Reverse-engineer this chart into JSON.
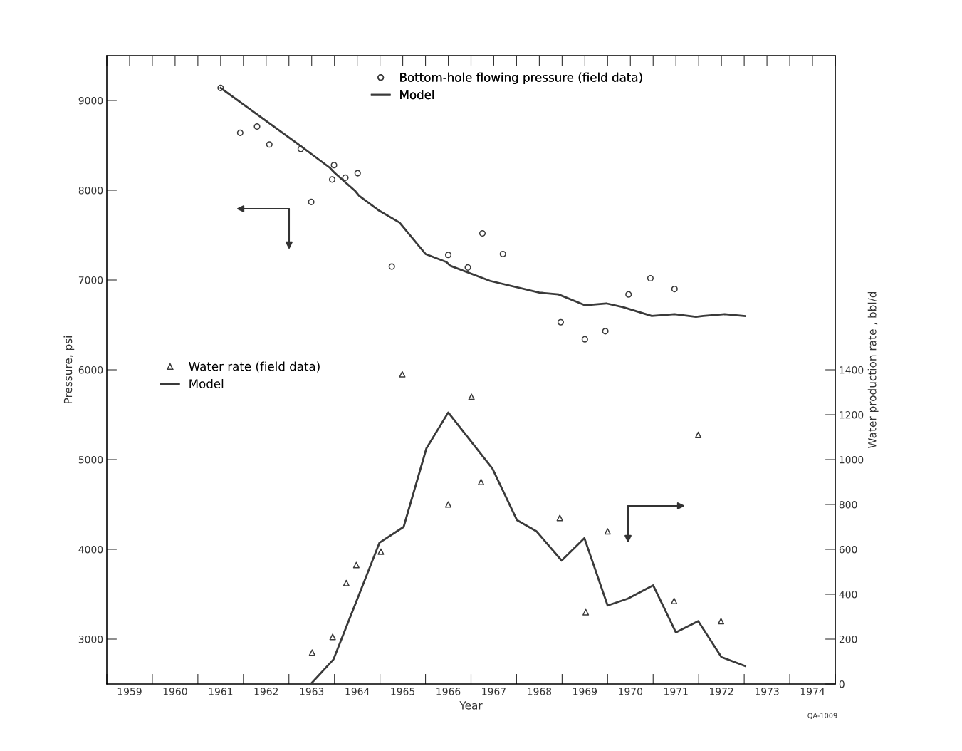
{
  "chart_data": {
    "type": "line",
    "xlabel": "Year",
    "ylabel": "Pressure, psi",
    "y2label": "Water production rate , bbl/d",
    "xlim": [
      1959,
      1975
    ],
    "xticks": [
      {
        "value": 1959,
        "label": null
      },
      {
        "value": 1959.5,
        "label": "1959"
      },
      {
        "value": 1960,
        "label": null
      },
      {
        "value": 1960.5,
        "label": "1960"
      },
      {
        "value": 1961,
        "label": null
      },
      {
        "value": 1961.5,
        "label": "1961"
      },
      {
        "value": 1962,
        "label": null
      },
      {
        "value": 1962.5,
        "label": "1962"
      },
      {
        "value": 1963,
        "label": null
      },
      {
        "value": 1963.5,
        "label": "1963"
      },
      {
        "value": 1964,
        "label": null
      },
      {
        "value": 1964.5,
        "label": "1964"
      },
      {
        "value": 1965,
        "label": null
      },
      {
        "value": 1965.5,
        "label": "1965"
      },
      {
        "value": 1966,
        "label": null
      },
      {
        "value": 1966.5,
        "label": "1966"
      },
      {
        "value": 1967,
        "label": null
      },
      {
        "value": 1967.5,
        "label": "1967"
      },
      {
        "value": 1968,
        "label": null
      },
      {
        "value": 1968.5,
        "label": "1968"
      },
      {
        "value": 1969,
        "label": null
      },
      {
        "value": 1969.5,
        "label": "1969"
      },
      {
        "value": 1970,
        "label": null
      },
      {
        "value": 1970.5,
        "label": "1970"
      },
      {
        "value": 1971,
        "label": null
      },
      {
        "value": 1971.5,
        "label": "1971"
      },
      {
        "value": 1972,
        "label": null
      },
      {
        "value": 1972.5,
        "label": "1972"
      },
      {
        "value": 1973,
        "label": null
      },
      {
        "value": 1973.5,
        "label": "1973"
      },
      {
        "value": 1974,
        "label": null
      },
      {
        "value": 1974.5,
        "label": "1974"
      },
      {
        "value": 1975,
        "label": null
      }
    ],
    "ylim": [
      2500,
      9500
    ],
    "yticks": [
      3000,
      4000,
      5000,
      6000,
      7000,
      8000,
      9000
    ],
    "y2lim": [
      0,
      2800
    ],
    "y2ticks": [
      0,
      200,
      400,
      600,
      800,
      1000,
      1200,
      1400
    ],
    "grid": false,
    "legend": "top",
    "annotations": [
      "QA-1009"
    ],
    "series": [
      {
        "name": "Bottom-hole flowing pressure (field data)",
        "type": "scatter",
        "marker": "circle",
        "color": "#3a3a3a",
        "x": [
          1961.5,
          1961.93,
          1962.3,
          1962.57,
          1963.26,
          1963.49,
          1963.99,
          1963.95,
          1964.24,
          1964.51,
          1965.26,
          1966.5,
          1966.93,
          1967.25,
          1967.7,
          1968.97,
          1969.5,
          1969.95,
          1970.46,
          1970.94,
          1971.47
        ],
        "values": [
          9140,
          8640,
          8710,
          8510,
          8460,
          7870,
          8280,
          8120,
          8140,
          8190,
          7150,
          7280,
          7140,
          7520,
          7290,
          6530,
          6340,
          6430,
          6840,
          7020,
          6900
        ]
      },
      {
        "name": "Model",
        "marker": "none",
        "line_style": "solid",
        "color": "#3a3a3a",
        "x": [
          1961.5,
          1963.21,
          1963.9,
          1963.99,
          1964.46,
          1964.54,
          1964.96,
          1965.43,
          1966.0,
          1966.46,
          1966.54,
          1967.42,
          1968.5,
          1968.92,
          1969.5,
          1969.97,
          1970.33,
          1970.97,
          1971.47,
          1971.94,
          1972.1,
          1972.57,
          1973.01
        ],
        "values": [
          9140,
          8510,
          8250,
          8200,
          7990,
          7940,
          7780,
          7640,
          7290,
          7200,
          7160,
          6990,
          6860,
          6840,
          6720,
          6740,
          6700,
          6600,
          6620,
          6590,
          6600,
          6620,
          6600
        ]
      },
      {
        "name": "Water rate (field data)",
        "type": "scatter",
        "axis": "y2",
        "marker": "triangle",
        "color": "#3a3a3a",
        "x": [
          1963.51,
          1963.96,
          1964.26,
          1964.48,
          1965.02,
          1965.49,
          1966.5,
          1967.01,
          1967.22,
          1968.95,
          1969.52,
          1970.0,
          1971.46,
          1971.99,
          1972.49
        ],
        "values": [
          140,
          210,
          450,
          530,
          590,
          1380,
          800,
          1280,
          900,
          740,
          320,
          680,
          370,
          1110,
          280
        ]
      },
      {
        "name": "Model",
        "axis": "y2",
        "marker": "none",
        "line_style": "solid",
        "color": "#3a3a3a",
        "x": [
          1963.48,
          1963.98,
          1964.99,
          1965.52,
          1966.02,
          1966.5,
          1967.47,
          1968.01,
          1968.44,
          1968.99,
          1969.49,
          1970.0,
          1970.44,
          1971.0,
          1971.5,
          1971.99,
          1972.5,
          1973.02
        ],
        "values": [
          0,
          110,
          630,
          700,
          1050,
          1210,
          960,
          730,
          680,
          550,
          650,
          350,
          380,
          440,
          230,
          280,
          120,
          80
        ]
      }
    ]
  }
}
